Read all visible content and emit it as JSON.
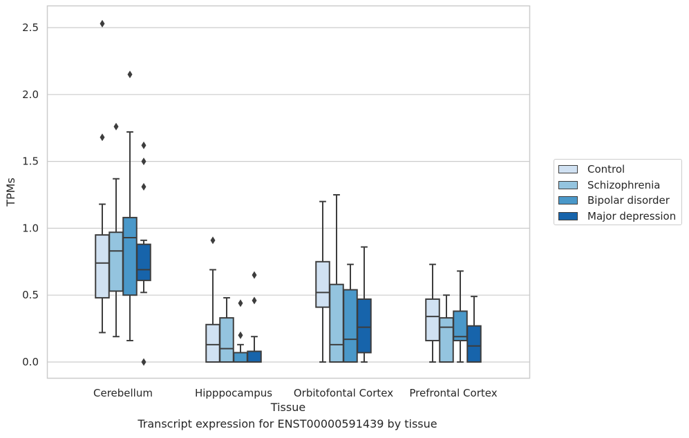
{
  "chart_data": {
    "type": "box",
    "title": "",
    "caption": "Transcript expression for ENST00000591439 by tissue",
    "xlabel": "Tissue",
    "ylabel": "TPMs",
    "ylim": [
      -0.12,
      2.66
    ],
    "yticks": [
      "0.0",
      "0.5",
      "1.0",
      "1.5",
      "2.0",
      "2.5"
    ],
    "grid": "horizontal",
    "legend_position": "right",
    "categories": [
      "Cerebellum",
      "Hipppocampus",
      "Orbitofontal Cortex",
      "Prefrontal Cortex"
    ],
    "series": [
      {
        "name": "Control",
        "color": "#d0e1f2",
        "boxes": [
          {
            "whislo": 0.22,
            "q1": 0.48,
            "med": 0.74,
            "q3": 0.95,
            "whishi": 1.18,
            "fliers": [
              1.68,
              2.53
            ]
          },
          {
            "whislo": 0.0,
            "q1": 0.0,
            "med": 0.13,
            "q3": 0.28,
            "whishi": 0.69,
            "fliers": [
              0.91
            ]
          },
          {
            "whislo": 0.0,
            "q1": 0.41,
            "med": 0.52,
            "q3": 0.75,
            "whishi": 1.2,
            "fliers": []
          },
          {
            "whislo": 0.0,
            "q1": 0.16,
            "med": 0.34,
            "q3": 0.47,
            "whishi": 0.73,
            "fliers": []
          }
        ]
      },
      {
        "name": "Schizophrenia",
        "color": "#94c4df",
        "boxes": [
          {
            "whislo": 0.19,
            "q1": 0.53,
            "med": 0.83,
            "q3": 0.97,
            "whishi": 1.37,
            "fliers": [
              1.76
            ]
          },
          {
            "whislo": 0.0,
            "q1": 0.0,
            "med": 0.1,
            "q3": 0.33,
            "whishi": 0.48,
            "fliers": []
          },
          {
            "whislo": 0.0,
            "q1": 0.0,
            "med": 0.13,
            "q3": 0.58,
            "whishi": 1.25,
            "fliers": []
          },
          {
            "whislo": 0.0,
            "q1": 0.0,
            "med": 0.26,
            "q3": 0.33,
            "whishi": 0.5,
            "fliers": []
          }
        ]
      },
      {
        "name": "Bipolar disorder",
        "color": "#4a98c9",
        "boxes": [
          {
            "whislo": 0.16,
            "q1": 0.5,
            "med": 0.93,
            "q3": 1.08,
            "whishi": 1.72,
            "fliers": [
              2.15
            ]
          },
          {
            "whislo": 0.0,
            "q1": 0.0,
            "med": 0.0,
            "q3": 0.07,
            "whishi": 0.13,
            "fliers": [
              0.2,
              0.44
            ]
          },
          {
            "whislo": 0.0,
            "q1": 0.0,
            "med": 0.17,
            "q3": 0.54,
            "whishi": 0.73,
            "fliers": []
          },
          {
            "whislo": 0.0,
            "q1": 0.16,
            "med": 0.19,
            "q3": 0.38,
            "whishi": 0.68,
            "fliers": []
          }
        ]
      },
      {
        "name": "Major depression",
        "color": "#1764ab",
        "boxes": [
          {
            "whislo": 0.52,
            "q1": 0.61,
            "med": 0.69,
            "q3": 0.88,
            "whishi": 0.91,
            "fliers": [
              1.31,
              1.5,
              1.62,
              0.0
            ]
          },
          {
            "whislo": 0.0,
            "q1": 0.0,
            "med": 0.0,
            "q3": 0.08,
            "whishi": 0.19,
            "fliers": [
              0.46,
              0.65
            ]
          },
          {
            "whislo": 0.0,
            "q1": 0.07,
            "med": 0.26,
            "q3": 0.47,
            "whishi": 0.86,
            "fliers": []
          },
          {
            "whislo": 0.0,
            "q1": 0.0,
            "med": 0.12,
            "q3": 0.27,
            "whishi": 0.49,
            "fliers": []
          }
        ]
      }
    ]
  }
}
